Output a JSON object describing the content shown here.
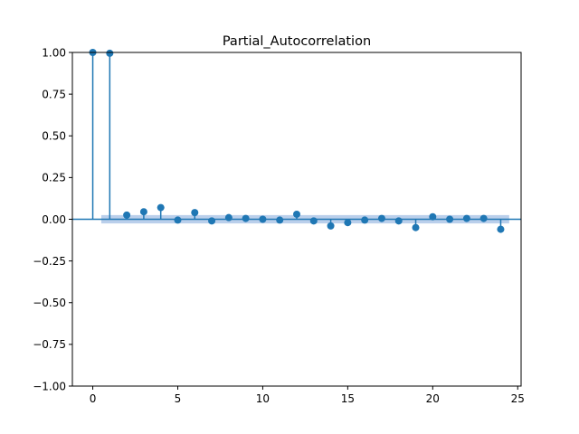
{
  "chart_data": {
    "type": "stem",
    "title": "Partial_Autocorrelation",
    "xlabel": "",
    "ylabel": "",
    "xlim": [
      -1.2,
      25.2
    ],
    "ylim": [
      -1.0,
      1.0
    ],
    "xticks": [
      0,
      5,
      10,
      15,
      20,
      25
    ],
    "yticks": [
      -1.0,
      -0.75,
      -0.5,
      -0.25,
      0.0,
      0.25,
      0.5,
      0.75,
      1.0
    ],
    "ytick_labels": [
      "−1.00",
      "−0.75",
      "−0.50",
      "−0.25",
      "0.00",
      "0.25",
      "0.50",
      "0.75",
      "1.00"
    ],
    "xtick_labels": [
      "0",
      "5",
      "10",
      "15",
      "20",
      "25"
    ],
    "grid": false,
    "colors": {
      "stem": "#1f77b4",
      "band": "#aec7e8"
    },
    "lags": [
      0,
      1,
      2,
      3,
      4,
      5,
      6,
      7,
      8,
      9,
      10,
      11,
      12,
      13,
      14,
      15,
      16,
      17,
      18,
      19,
      20,
      21,
      22,
      23,
      24
    ],
    "values": [
      1.0,
      0.995,
      0.025,
      0.045,
      0.07,
      -0.005,
      0.04,
      -0.01,
      0.01,
      0.005,
      0.0,
      -0.005,
      0.03,
      -0.01,
      -0.04,
      -0.02,
      -0.005,
      0.005,
      -0.01,
      -0.05,
      0.015,
      0.0,
      0.005,
      0.005,
      -0.06
    ],
    "confidence_band": {
      "x_start": 0.5,
      "x_end": 24.5,
      "lower": -0.025,
      "upper": 0.025
    }
  }
}
